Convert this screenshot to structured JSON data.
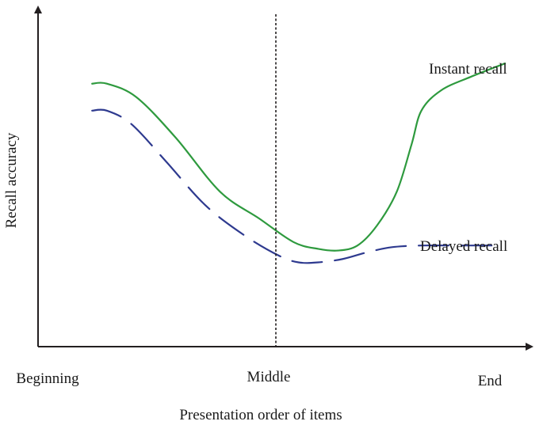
{
  "chart_data": {
    "type": "line",
    "title": "",
    "xlabel": "Presentation order of items",
    "ylabel": "Recall accuracy",
    "x_tick_labels": [
      "Beginning",
      "Middle",
      "End"
    ],
    "xlim": [
      0,
      100
    ],
    "ylim": [
      0,
      100
    ],
    "grid": false,
    "legend": "none",
    "divider": {
      "x": 50,
      "style": "dotted"
    },
    "series": [
      {
        "name": "Instant recall",
        "color": "#2e9a3e",
        "dash": "solid",
        "x": [
          11,
          14,
          20,
          28,
          37,
          45,
          52,
          57,
          61,
          65,
          69,
          73,
          76,
          78,
          82,
          88,
          95
        ],
        "y": [
          78,
          78,
          74,
          62,
          46,
          38,
          31,
          29,
          28.5,
          30,
          36,
          46,
          60,
          70,
          76,
          80,
          84
        ]
      },
      {
        "name": "Delayed recall",
        "color": "#2e3a8f",
        "dash": "dashed",
        "x": [
          11,
          14,
          19,
          26,
          34,
          42,
          49,
          53,
          57,
          62,
          67,
          72,
          78,
          85,
          93
        ],
        "y": [
          70,
          70,
          66,
          55,
          42,
          33,
          27,
          25,
          25,
          26,
          28,
          29.5,
          30,
          30,
          30
        ]
      }
    ],
    "annotations": [
      "Instant recall",
      "Delayed recall"
    ]
  }
}
